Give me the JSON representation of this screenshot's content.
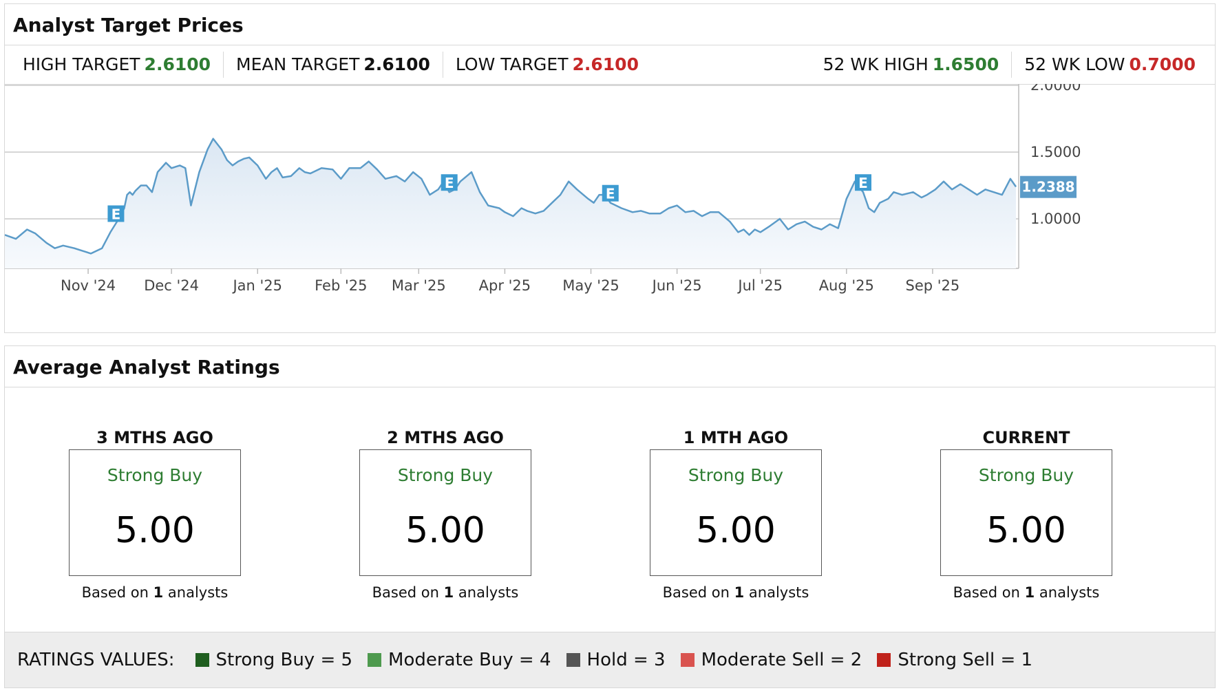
{
  "target_section": {
    "title": "Analyst Target Prices",
    "high": {
      "label": "HIGH TARGET",
      "value": "2.6100"
    },
    "mean": {
      "label": "MEAN TARGET",
      "value": "2.6100"
    },
    "low": {
      "label": "LOW TARGET",
      "value": "2.6100"
    },
    "wk52_high": {
      "label": "52 WK HIGH",
      "value": "1.6500"
    },
    "wk52_low": {
      "label": "52 WK LOW",
      "value": "0.7000"
    }
  },
  "chart_data": {
    "type": "area",
    "ylim": [
      0.6,
      2.0
    ],
    "yticks": [
      1.0,
      1.5,
      2.0
    ],
    "ytick_labels": [
      "1.0000",
      "1.5000",
      "2.0000"
    ],
    "xlim_days": [
      0,
      365
    ],
    "current_value": 1.2388,
    "current_label": "1.2388",
    "xticks": [
      {
        "label": "Nov '24",
        "day": 30
      },
      {
        "label": "Dec '24",
        "day": 60
      },
      {
        "label": "Jan '25",
        "day": 91
      },
      {
        "label": "Feb '25",
        "day": 121
      },
      {
        "label": "Mar '25",
        "day": 149
      },
      {
        "label": "Apr '25",
        "day": 180
      },
      {
        "label": "May '25",
        "day": 211
      },
      {
        "label": "Jun '25",
        "day": 242
      },
      {
        "label": "Jul '25",
        "day": 272
      },
      {
        "label": "Aug '25",
        "day": 303
      },
      {
        "label": "Sep '25",
        "day": 334
      }
    ],
    "earnings_markers": [
      {
        "label": "E",
        "day": 40
      },
      {
        "label": "E",
        "day": 160
      },
      {
        "label": "E",
        "day": 218
      },
      {
        "label": "E",
        "day": 309
      }
    ],
    "series": [
      {
        "days": [
          0,
          4,
          8,
          11,
          15,
          18,
          21,
          25,
          28,
          31,
          35,
          38,
          41,
          43,
          44,
          45,
          46,
          47,
          49,
          51,
          53,
          55,
          58,
          60,
          63,
          65,
          67,
          70,
          73,
          75,
          78,
          79,
          80,
          82,
          84,
          86,
          88,
          91,
          94,
          96,
          98,
          100,
          103,
          106,
          108,
          110,
          114,
          118,
          121,
          124,
          128,
          131,
          134,
          137,
          141,
          144,
          147,
          150,
          153,
          156,
          158,
          160,
          162,
          164,
          168,
          171,
          174,
          178,
          180,
          183,
          186,
          188,
          191,
          194,
          197,
          200,
          203,
          206,
          210,
          212,
          214,
          216,
          218,
          222,
          226,
          229,
          232,
          236,
          239,
          242,
          245,
          248,
          251,
          254,
          257,
          261,
          264,
          266,
          268,
          270,
          272,
          275,
          279,
          282,
          285,
          288,
          291,
          294,
          297,
          300,
          303,
          306,
          309,
          311,
          313,
          315,
          318,
          320,
          323,
          327,
          330,
          332,
          335,
          338,
          341,
          344,
          347,
          350,
          353,
          356,
          359,
          362,
          364
        ],
        "values": [
          0.88,
          0.85,
          0.92,
          0.89,
          0.82,
          0.78,
          0.8,
          0.78,
          0.76,
          0.74,
          0.78,
          0.9,
          1.0,
          1.08,
          1.18,
          1.2,
          1.18,
          1.21,
          1.25,
          1.25,
          1.2,
          1.35,
          1.42,
          1.38,
          1.4,
          1.38,
          1.1,
          1.35,
          1.52,
          1.6,
          1.52,
          1.48,
          1.44,
          1.4,
          1.43,
          1.45,
          1.46,
          1.4,
          1.3,
          1.35,
          1.38,
          1.31,
          1.32,
          1.38,
          1.35,
          1.34,
          1.38,
          1.37,
          1.3,
          1.38,
          1.38,
          1.43,
          1.37,
          1.3,
          1.32,
          1.28,
          1.35,
          1.3,
          1.18,
          1.22,
          1.28,
          1.2,
          1.22,
          1.28,
          1.35,
          1.2,
          1.1,
          1.08,
          1.05,
          1.02,
          1.08,
          1.06,
          1.04,
          1.06,
          1.12,
          1.18,
          1.28,
          1.22,
          1.15,
          1.12,
          1.18,
          1.18,
          1.12,
          1.08,
          1.05,
          1.06,
          1.04,
          1.04,
          1.08,
          1.1,
          1.05,
          1.06,
          1.02,
          1.05,
          1.05,
          0.98,
          0.9,
          0.92,
          0.88,
          0.92,
          0.9,
          0.94,
          1.0,
          0.92,
          0.96,
          0.98,
          0.94,
          0.92,
          0.96,
          0.93,
          1.15,
          1.28,
          1.2,
          1.08,
          1.05,
          1.12,
          1.15,
          1.2,
          1.18,
          1.2,
          1.16,
          1.18,
          1.22,
          1.28,
          1.22,
          1.26,
          1.22,
          1.18,
          1.22,
          1.2,
          1.18,
          1.3,
          1.24
        ]
      }
    ]
  },
  "ratings_section": {
    "title": "Average Analyst Ratings",
    "columns": [
      {
        "period": "3 MTHS AGO",
        "label": "Strong Buy",
        "value": "5.00",
        "based_prefix": "Based on ",
        "count": "1",
        "based_suffix": " analysts"
      },
      {
        "period": "2 MTHS AGO",
        "label": "Strong Buy",
        "value": "5.00",
        "based_prefix": "Based on ",
        "count": "1",
        "based_suffix": " analysts"
      },
      {
        "period": "1 MTH AGO",
        "label": "Strong Buy",
        "value": "5.00",
        "based_prefix": "Based on ",
        "count": "1",
        "based_suffix": " analysts"
      },
      {
        "period": "CURRENT",
        "label": "Strong Buy",
        "value": "5.00",
        "based_prefix": "Based on ",
        "count": "1",
        "based_suffix": " analysts"
      }
    ],
    "legend_title": "RATINGS VALUES:",
    "legend": [
      {
        "label": "Strong Buy = 5",
        "color": "#1f5e1f"
      },
      {
        "label": "Moderate Buy = 4",
        "color": "#4e9a4e"
      },
      {
        "label": "Hold = 3",
        "color": "#555555"
      },
      {
        "label": "Moderate Sell = 2",
        "color": "#d9534f"
      },
      {
        "label": "Strong Sell = 1",
        "color": "#c0221b"
      }
    ]
  },
  "colors": {
    "line": "#5b9bc8",
    "marker_bg": "#3d9bd1",
    "current_tag": "#5b9bc8",
    "positive": "#2e7d32",
    "negative": "#c62828"
  }
}
